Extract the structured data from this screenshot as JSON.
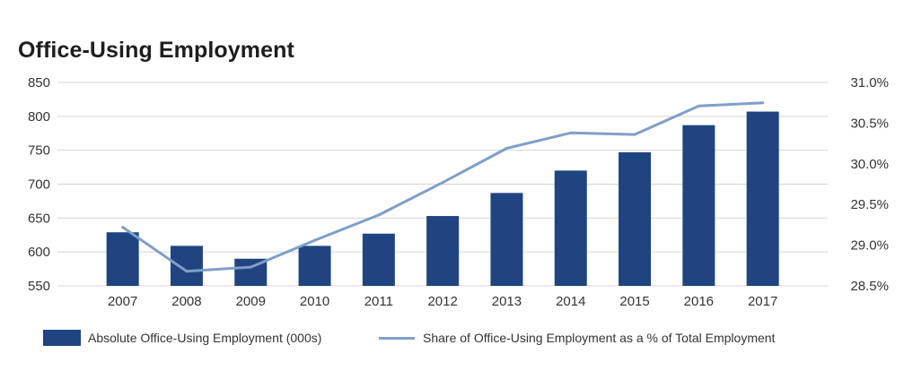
{
  "chart_data": {
    "type": "bar",
    "title": "Office-Using Employment",
    "categories": [
      "2007",
      "2008",
      "2009",
      "2010",
      "2011",
      "2012",
      "2013",
      "2014",
      "2015",
      "2016",
      "2017"
    ],
    "series": [
      {
        "name": "Absolute Office-Using Employment (000s)",
        "type": "bar",
        "axis": "left",
        "color": "#1f4480",
        "values": [
          629,
          609,
          590,
          609,
          627,
          653,
          687,
          720,
          747,
          787,
          807
        ]
      },
      {
        "name": "Share of Office-Using Employment as a % of Total Employment",
        "type": "line",
        "axis": "right",
        "color": "#7f9fc6",
        "values": [
          29.22,
          28.68,
          28.73,
          29.06,
          29.37,
          29.77,
          30.19,
          30.38,
          30.36,
          30.71,
          30.75
        ]
      }
    ],
    "y_left": {
      "ylim": [
        550,
        850
      ],
      "ticks": [
        "550",
        "600",
        "650",
        "700",
        "750",
        "800",
        "850"
      ]
    },
    "y_right": {
      "ylim": [
        28.5,
        31.0
      ],
      "ticks": [
        "28.5%",
        "29.0%",
        "29.5%",
        "30.0%",
        "30.5%",
        "31.0%"
      ]
    },
    "grid": true,
    "legend_position": "bottom"
  }
}
